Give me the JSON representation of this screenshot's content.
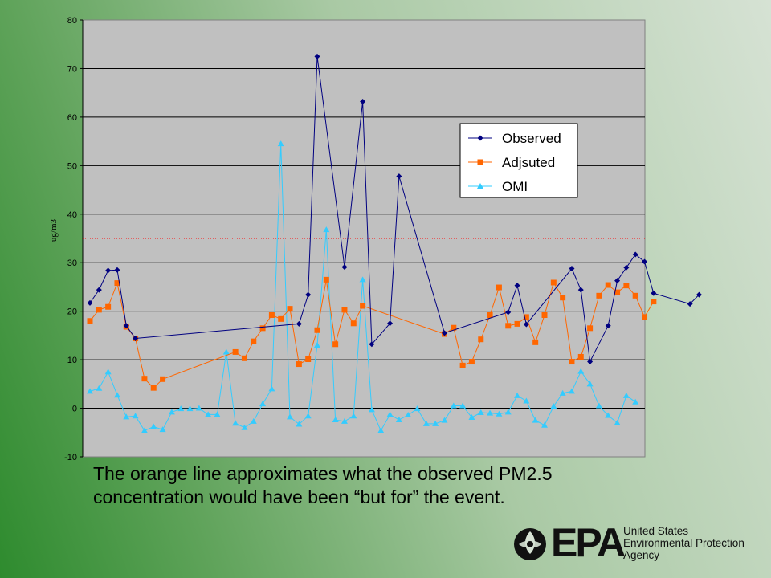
{
  "caption": {
    "line1": "The orange line approximates what the observed PM2.5",
    "line2": "concentration would have been “but for” the event."
  },
  "logo": {
    "mark": "EPA",
    "line1": "United States",
    "line2": "Environmental Protection",
    "line3": "Agency"
  },
  "chart_data": {
    "type": "line",
    "ylabel": "ug/m3",
    "ylim": [
      -10,
      80
    ],
    "yticks": [
      -10,
      0,
      10,
      20,
      30,
      40,
      50,
      60,
      70,
      80
    ],
    "grid": true,
    "plot_background": "#c0c0c0",
    "reference_line": {
      "y": 35,
      "color": "#ff0000",
      "style": "dotted"
    },
    "legend_position": "right",
    "series": [
      {
        "name": "Observed",
        "color": "#000080",
        "marker": "diamond",
        "points": [
          [
            0,
            21.7
          ],
          [
            1,
            24.4
          ],
          [
            2,
            28.4
          ],
          [
            3,
            28.5
          ],
          [
            4,
            17
          ],
          [
            5,
            14.4
          ],
          [
            23,
            17.4
          ],
          [
            24,
            23.4
          ],
          [
            25,
            72.5
          ],
          [
            28,
            29.1
          ],
          [
            30,
            63.2
          ],
          [
            31,
            13.2
          ],
          [
            33,
            17.5
          ],
          [
            34,
            47.8
          ],
          [
            39,
            15.5
          ],
          [
            46,
            19.8
          ],
          [
            47,
            25.3
          ],
          [
            48,
            17.3
          ],
          [
            53,
            28.8
          ],
          [
            54,
            24.4
          ],
          [
            55,
            9.6
          ],
          [
            57,
            17
          ],
          [
            58,
            26.3
          ],
          [
            59,
            29
          ],
          [
            60,
            31.7
          ],
          [
            61,
            30.2
          ],
          [
            62,
            23.7
          ],
          [
            66,
            21.5
          ],
          [
            67,
            23.4
          ]
        ]
      },
      {
        "name": "Adjsuted",
        "color": "#ff6600",
        "marker": "square",
        "points": [
          [
            0,
            18
          ],
          [
            1,
            20.3
          ],
          [
            2,
            20.9
          ],
          [
            3,
            25.8
          ],
          [
            4,
            16.8
          ],
          [
            5,
            14.4
          ],
          [
            6,
            6.1
          ],
          [
            7,
            4.2
          ],
          [
            8,
            6
          ],
          [
            16,
            11.6
          ],
          [
            17,
            10.3
          ],
          [
            18,
            13.8
          ],
          [
            19,
            16.5
          ],
          [
            20,
            19.2
          ],
          [
            21,
            18.4
          ],
          [
            22,
            20.5
          ],
          [
            23,
            9.1
          ],
          [
            24,
            10.1
          ],
          [
            25,
            16.1
          ],
          [
            26,
            26.5
          ],
          [
            27,
            13.2
          ],
          [
            28,
            20.3
          ],
          [
            29,
            17.5
          ],
          [
            30,
            21.1
          ],
          [
            39,
            15.3
          ],
          [
            40,
            16.6
          ],
          [
            41,
            8.8
          ],
          [
            42,
            9.6
          ],
          [
            43,
            14.2
          ],
          [
            44,
            19.2
          ],
          [
            45,
            24.9
          ],
          [
            46,
            17
          ],
          [
            47,
            17.4
          ],
          [
            48,
            18.8
          ],
          [
            49,
            13.6
          ],
          [
            50,
            19.2
          ],
          [
            51,
            25.9
          ],
          [
            52,
            22.8
          ],
          [
            53,
            9.6
          ],
          [
            54,
            10.6
          ],
          [
            55,
            16.5
          ],
          [
            56,
            23.2
          ],
          [
            57,
            25.4
          ],
          [
            58,
            23.9
          ],
          [
            59,
            25.3
          ],
          [
            60,
            23.2
          ],
          [
            61,
            18.8
          ],
          [
            62,
            22
          ]
        ]
      },
      {
        "name": "OMI",
        "color": "#33ccff",
        "marker": "triangle",
        "points": [
          [
            0,
            3.5
          ],
          [
            1,
            4.1
          ],
          [
            2,
            7.5
          ],
          [
            3,
            2.7
          ],
          [
            4,
            -1.8
          ],
          [
            5,
            -1.6
          ],
          [
            6,
            -4.6
          ],
          [
            7,
            -3.8
          ],
          [
            8,
            -4.4
          ],
          [
            9,
            -0.8
          ],
          [
            10,
            -0.1
          ],
          [
            11,
            -0.1
          ],
          [
            12,
            0
          ],
          [
            13,
            -1.3
          ],
          [
            14,
            -1.3
          ],
          [
            15,
            11.6
          ],
          [
            16,
            -3.1
          ],
          [
            17,
            -4
          ],
          [
            18,
            -2.7
          ],
          [
            19,
            0.9
          ],
          [
            20,
            4
          ],
          [
            21,
            54.5
          ],
          [
            22,
            -1.8
          ],
          [
            23,
            -3.3
          ],
          [
            24,
            -1.6
          ],
          [
            25,
            13
          ],
          [
            26,
            36.8
          ],
          [
            27,
            -2.4
          ],
          [
            28,
            -2.7
          ],
          [
            29,
            -1.6
          ],
          [
            30,
            26.5
          ],
          [
            31,
            -0.3
          ],
          [
            32,
            -4.6
          ],
          [
            33,
            -1.3
          ],
          [
            34,
            -2.4
          ],
          [
            35,
            -1.4
          ],
          [
            36,
            -0.1
          ],
          [
            37,
            -3.2
          ],
          [
            38,
            -3.2
          ],
          [
            39,
            -2.5
          ],
          [
            40,
            0.5
          ],
          [
            41,
            0.5
          ],
          [
            42,
            -1.9
          ],
          [
            43,
            -0.9
          ],
          [
            44,
            -1
          ],
          [
            45,
            -1.2
          ],
          [
            46,
            -0.8
          ],
          [
            47,
            2.6
          ],
          [
            48,
            1.5
          ],
          [
            49,
            -2.5
          ],
          [
            50,
            -3.5
          ],
          [
            51,
            0.4
          ],
          [
            52,
            3.1
          ],
          [
            53,
            3.5
          ],
          [
            54,
            7.6
          ],
          [
            55,
            5
          ],
          [
            56,
            0.5
          ],
          [
            57,
            -1.5
          ],
          [
            58,
            -3
          ],
          [
            59,
            2.6
          ],
          [
            60,
            1.3
          ]
        ]
      }
    ]
  }
}
